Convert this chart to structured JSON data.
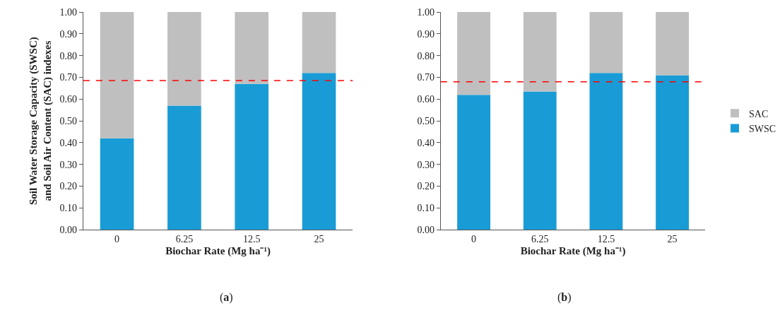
{
  "chart_data": [
    {
      "type": "bar",
      "stacked": true,
      "ylabel": "Soil Water Storage Capacity (SWSC)\nand Soil Air Content (SAC) indexes",
      "xlabel": "Biochar Rate (Mg ha⁻¹)",
      "categories": [
        "0",
        "6.25",
        "12.5",
        "25"
      ],
      "series": [
        {
          "color": "#199cd6",
          "values": [
            0.42,
            0.57,
            0.67,
            0.72
          ]
        },
        {
          "color": "#bfbfbf",
          "values": [
            0.58,
            0.43,
            0.33,
            0.28
          ]
        }
      ],
      "ylim": [
        0,
        1
      ],
      "yticks": [
        {
          "value": 0,
          "label": "0.00"
        },
        {
          "value": 0.1,
          "label": "0.10"
        },
        {
          "value": 0.2,
          "label": "0.20"
        },
        {
          "value": 0.3,
          "label": "0.30"
        },
        {
          "value": 0.4,
          "label": "0.40"
        },
        {
          "value": 0.5,
          "label": "0.50"
        },
        {
          "value": 0.6,
          "label": "0.60"
        },
        {
          "value": 0.7,
          "label": "0.70"
        },
        {
          "value": 0.8,
          "label": "0.80"
        },
        {
          "value": 0.9,
          "label": "0.90"
        },
        {
          "value": 1,
          "label": "1.00"
        }
      ],
      "ref_lines": [
        {
          "axis": "y",
          "value": 0.685,
          "color": "#ff0000",
          "line_style": "dashed"
        }
      ],
      "annotations": [
        "(a)"
      ],
      "legend": false
    },
    {
      "type": "bar",
      "stacked": true,
      "xlabel": "Biochar Rate (Mg ha⁻¹)",
      "categories": [
        "0",
        "6.25",
        "12.5",
        "25"
      ],
      "series": [
        {
          "name": "SWSC",
          "color": "#199cd6",
          "values": [
            0.62,
            0.635,
            0.72,
            0.71
          ]
        },
        {
          "name": "SAC",
          "color": "#bfbfbf",
          "values": [
            0.38,
            0.365,
            0.28,
            0.29
          ]
        }
      ],
      "ylim": [
        0,
        1
      ],
      "yticks": [
        {
          "value": 0,
          "label": "0.00"
        },
        {
          "value": 0.1,
          "label": "0.10"
        },
        {
          "value": 0.2,
          "label": "0.20"
        },
        {
          "value": 0.3,
          "label": "0.30"
        },
        {
          "value": 0.4,
          "label": "0.40"
        },
        {
          "value": 0.5,
          "label": "0.50"
        },
        {
          "value": 0.6,
          "label": "0.60"
        },
        {
          "value": 0.7,
          "label": "0.70"
        },
        {
          "value": 0.8,
          "label": "0.80"
        },
        {
          "value": 0.9,
          "label": "0.90"
        },
        {
          "value": 1,
          "label": "1.00"
        }
      ],
      "ref_lines": [
        {
          "axis": "y",
          "value": 0.68,
          "color": "#ff0000",
          "line_style": "dashed"
        }
      ],
      "annotations": [
        "(b)"
      ],
      "legend": "right"
    }
  ]
}
